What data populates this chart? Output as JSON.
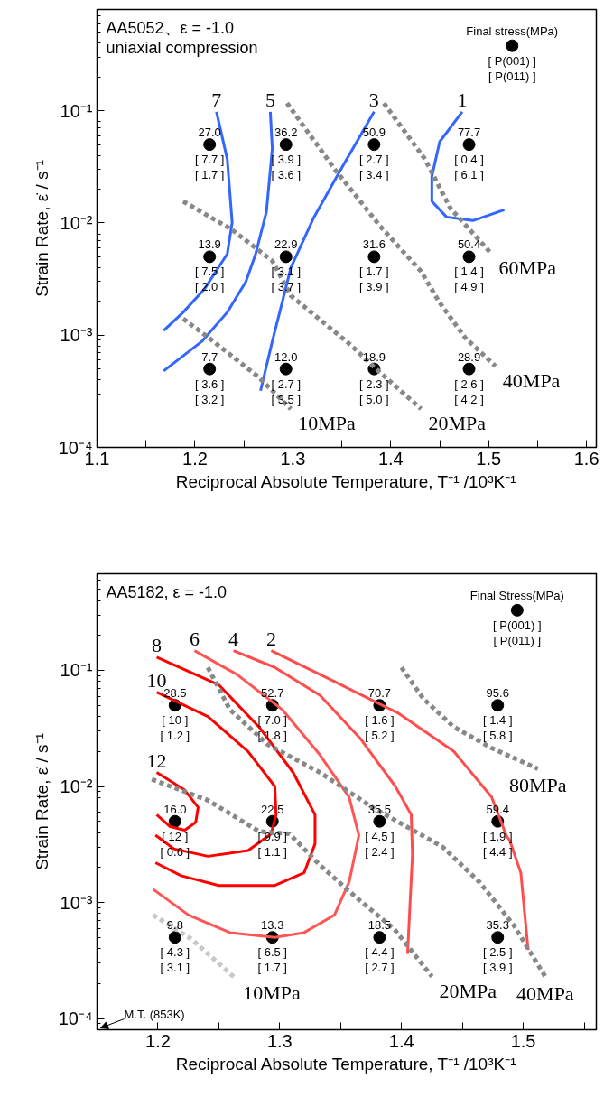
{
  "chart_data": [
    {
      "type": "scatter",
      "title": "AA5052、ε = -1.0",
      "subtitle": "uniaxial compression",
      "xlabel": "Reciprocal Absolute Temperature, T⁻¹ /10³K⁻¹",
      "ylabel": "Strain Rate, ε̇ / s⁻¹",
      "log": "y",
      "xlim": [
        1.1,
        1.61
      ],
      "ylim": [
        0.0001,
        0.8
      ],
      "xticks": [
        1.1,
        {
          "value": 1.15,
          "label": null
        },
        1.2,
        {
          "value": 1.25,
          "label": null
        },
        1.3,
        {
          "value": 1.35,
          "label": null
        },
        1.4,
        {
          "value": 1.45,
          "label": null
        },
        1.5,
        {
          "value": 1.55,
          "label": null
        },
        1.6
      ],
      "yticks": [
        {
          "value": 0.0001,
          "label": "10⁻⁴"
        },
        {
          "value": 0.001,
          "label": "10⁻³"
        },
        {
          "value": 0.01,
          "label": "10⁻²"
        },
        {
          "value": 0.1,
          "label": "10⁻¹"
        }
      ],
      "series": [
        {
          "marker": "circle",
          "color": "#000000",
          "x": [
            1.215,
            1.293,
            1.383,
            1.48,
            1.215,
            1.293,
            1.383,
            1.48,
            1.215,
            1.293,
            1.383,
            1.48
          ],
          "values": [
            0.05,
            0.05,
            0.05,
            0.05,
            0.005,
            0.005,
            0.005,
            0.005,
            0.0005,
            0.0005,
            0.0005,
            0.0005
          ]
        },
        {
          "marker": "circle",
          "color": "#000000",
          "x": [
            1.524
          ],
          "values": [
            0.38
          ]
        },
        {
          "type": "line",
          "name": "7",
          "color": "#3366ff",
          "line_style": "solid",
          "x": [
            1.222,
            1.233,
            1.238,
            1.233,
            1.21,
            1.188,
            1.168
          ],
          "values": [
            0.098,
            0.037,
            0.0101,
            0.0053,
            0.0026,
            0.0016,
            0.0011
          ]
        },
        {
          "type": "line",
          "name": "5",
          "color": "#3366ff",
          "line_style": "solid",
          "x": [
            1.277,
            1.279,
            1.273,
            1.262,
            1.252,
            1.233,
            1.207,
            1.168
          ],
          "values": [
            0.098,
            0.046,
            0.0126,
            0.0053,
            0.003,
            0.0016,
            0.00088,
            0.00048
          ]
        },
        {
          "type": "line",
          "name": "3",
          "color": "#3366ff",
          "line_style": "solid",
          "x": [
            1.383,
            1.347,
            1.321,
            1.298,
            1.29,
            1.279,
            1.267
          ],
          "values": [
            0.098,
            0.028,
            0.011,
            0.004,
            0.0021,
            0.00088,
            0.00032
          ]
        },
        {
          "type": "line",
          "name": "1",
          "color": "#3366ff",
          "line_style": "solid",
          "x": [
            1.473,
            1.45,
            1.442,
            1.442,
            1.457,
            1.484,
            1.516
          ],
          "values": [
            0.098,
            0.053,
            0.026,
            0.0156,
            0.0113,
            0.0105,
            0.0131
          ]
        },
        {
          "type": "line",
          "name": "10MPa",
          "color": "#888888",
          "line_style": "dotted",
          "x": [
            1.188,
            1.214,
            1.264,
            1.298
          ],
          "values": [
            0.0014,
            0.00095,
            0.00043,
            0.00022
          ]
        },
        {
          "type": "line",
          "name": "20MPa",
          "color": "#888888",
          "line_style": "dotted",
          "x": [
            1.188,
            1.237,
            1.279,
            1.298,
            1.359,
            1.385,
            1.431
          ],
          "values": [
            0.0156,
            0.0088,
            0.0046,
            0.00225,
            0.00082,
            0.0005,
            0.00022
          ]
        },
        {
          "type": "line",
          "name": "40MPa",
          "color": "#888888",
          "line_style": "dotted",
          "x": [
            1.294,
            1.343,
            1.389,
            1.431,
            1.45,
            1.476,
            1.507
          ],
          "values": [
            0.117,
            0.03,
            0.0094,
            0.0037,
            0.00195,
            0.00095,
            0.00053
          ]
        },
        {
          "type": "line",
          "name": "60MPa",
          "color": "#888888",
          "line_style": "dotted",
          "x": [
            1.393,
            1.435,
            1.461,
            1.503
          ],
          "values": [
            0.117,
            0.037,
            0.0135,
            0.0053
          ]
        }
      ],
      "annotations": [
        {
          "text": "27.0\n[ 7.7 ]\n[ 1.7 ]",
          "x": 1.215,
          "y": 0.05
        },
        {
          "text": "36.2\n[ 3.9 ]\n[ 3.6 ]",
          "x": 1.293,
          "y": 0.05
        },
        {
          "text": "50.9\n[ 2.7 ]\n[ 3.4 ]",
          "x": 1.383,
          "y": 0.05
        },
        {
          "text": "77.7\n[ 0.4 ]\n[ 6.1 ]",
          "x": 1.48,
          "y": 0.05
        },
        {
          "text": "13.9\n[ 7.5 ]\n[ 2.0 ]",
          "x": 1.215,
          "y": 0.005
        },
        {
          "text": "22.9\n[ 3.1 ]\n[ 3.7 ]",
          "x": 1.293,
          "y": 0.005
        },
        {
          "text": "31.6\n[ 1.7 ]\n[ 3.9 ]",
          "x": 1.383,
          "y": 0.005
        },
        {
          "text": "50.4\n[ 1.4 ]\n[ 4.9 ]",
          "x": 1.48,
          "y": 0.005
        },
        {
          "text": "7.7\n[ 3.6 ]\n[ 3.2 ]",
          "x": 1.215,
          "y": 0.0005
        },
        {
          "text": "12.0\n[ 2.7 ]\n[ 3.5 ]",
          "x": 1.293,
          "y": 0.0005
        },
        {
          "text": "18.9\n[ 2.3 ]\n[ 5.0 ]",
          "x": 1.383,
          "y": 0.0005
        },
        {
          "text": "28.9\n[ 2.6 ]\n[ 4.2 ]",
          "x": 1.48,
          "y": 0.0005
        },
        {
          "text": "Final stress(MPa)",
          "x": 1.524,
          "y": 0.38
        },
        {
          "text": "[ P(001) ]\n[ P(011) ]",
          "x": 1.524,
          "y": 0.38
        }
      ]
    },
    {
      "type": "scatter",
      "title": "AA5182, ε = -1.0",
      "xlabel": "Reciprocal Absolute Temperature, T⁻¹ /10³K⁻¹",
      "ylabel": "Strain Rate, ε̇ / s⁻¹",
      "log": "y",
      "xlim": [
        1.15,
        1.56
      ],
      "ylim": [
        8e-05,
        0.68
      ],
      "xticks": [
        1.2,
        {
          "value": 1.25,
          "label": null
        },
        1.3,
        {
          "value": 1.35,
          "label": null
        },
        1.4,
        {
          "value": 1.45,
          "label": null
        },
        1.5,
        {
          "value": 1.55,
          "label": null
        }
      ],
      "yticks": [
        {
          "value": 0.0001,
          "label": "10⁻⁴"
        },
        {
          "value": 0.001,
          "label": "10⁻³"
        },
        {
          "value": 0.01,
          "label": "10⁻²"
        },
        {
          "value": 0.1,
          "label": "10⁻¹"
        }
      ],
      "series": [
        {
          "marker": "circle",
          "color": "#000000",
          "x": [
            1.214,
            1.294,
            1.382,
            1.479,
            1.214,
            1.294,
            1.382,
            1.479,
            1.214,
            1.294,
            1.382,
            1.479
          ],
          "values": [
            0.05,
            0.05,
            0.05,
            0.05,
            0.005,
            0.005,
            0.005,
            0.005,
            0.0005,
            0.0005,
            0.0005,
            0.0005
          ]
        },
        {
          "marker": "circle",
          "color": "#000000",
          "x": [
            1.495
          ],
          "values": [
            0.33
          ]
        },
        {
          "type": "line",
          "name": "8",
          "color": "#ff0000",
          "line_style": "solid",
          "x": [
            1.199,
            1.25,
            1.283,
            1.311,
            1.329,
            1.329,
            1.32,
            1.296,
            1.25,
            1.219,
            1.198
          ],
          "values": [
            0.13,
            0.075,
            0.0325,
            0.0132,
            0.0057,
            0.0032,
            0.0018,
            0.0014,
            0.0014,
            0.0017,
            0.0022
          ]
        },
        {
          "type": "line",
          "name": "10",
          "color": "#ff0000",
          "line_style": "solid",
          "x": [
            1.199,
            1.241,
            1.274,
            1.296,
            1.297,
            1.293,
            1.274,
            1.241,
            1.213,
            1.198
          ],
          "values": [
            0.065,
            0.04,
            0.02,
            0.01,
            0.0057,
            0.0039,
            0.0028,
            0.0025,
            0.0029,
            0.0038
          ]
        },
        {
          "type": "line",
          "name": "12",
          "color": "#ff0000",
          "line_style": "solid",
          "x": [
            1.199,
            1.222,
            1.233,
            1.231,
            1.222,
            1.21,
            1.199
          ],
          "values": [
            0.0132,
            0.0093,
            0.0066,
            0.0049,
            0.0042,
            0.0045,
            0.0057
          ]
        },
        {
          "type": "line",
          "name": "6",
          "color": "#ff5555",
          "line_style": "solid",
          "x": [
            1.23,
            1.265,
            1.302,
            1.333,
            1.357,
            1.365,
            1.363,
            1.357,
            1.345,
            1.32,
            1.296,
            1.259,
            1.225,
            1.196
          ],
          "values": [
            0.148,
            0.092,
            0.046,
            0.0187,
            0.0081,
            0.0038,
            0.003,
            0.0015,
            0.00078,
            0.00055,
            0.0005,
            0.00055,
            0.00078,
            0.0013
          ]
        },
        {
          "type": "line",
          "name": "4",
          "color": "#ff4d4d",
          "line_style": "solid",
          "x": [
            1.262,
            1.296,
            1.333,
            1.366,
            1.395,
            1.408,
            1.409,
            1.405
          ],
          "values": [
            0.148,
            0.106,
            0.061,
            0.026,
            0.01,
            0.0057,
            0.0026,
            0.00036
          ]
        },
        {
          "type": "line",
          "name": "2",
          "color": "#ff4d4d",
          "line_style": "solid",
          "x": [
            1.293,
            1.345,
            1.397,
            1.443,
            1.474,
            1.486,
            1.489,
            1.498,
            1.504
          ],
          "values": [
            0.148,
            0.08,
            0.043,
            0.02,
            0.0081,
            0.0038,
            0.0034,
            0.0018,
            0.00039
          ]
        },
        {
          "type": "line",
          "name": "10MPa",
          "color": "#c8c8c8",
          "line_style": "dotted",
          "x": [
            1.196,
            1.228,
            1.264
          ],
          "values": [
            0.00078,
            0.00048,
            0.00022
          ]
        },
        {
          "type": "line",
          "name": "20MPa",
          "color": "#888888",
          "line_style": "dotted",
          "x": [
            1.195,
            1.241,
            1.283,
            1.308,
            1.333,
            1.363,
            1.394,
            1.425
          ],
          "values": [
            0.0115,
            0.0076,
            0.0041,
            0.0039,
            0.0021,
            0.0011,
            0.00059,
            0.00023
          ]
        },
        {
          "type": "line",
          "name": "40MPa",
          "color": "#888888",
          "line_style": "dotted",
          "x": [
            1.241,
            1.259,
            1.29,
            1.333,
            1.376,
            1.406,
            1.434,
            1.464,
            1.492,
            1.518
          ],
          "values": [
            0.106,
            0.046,
            0.023,
            0.0132,
            0.0066,
            0.0044,
            0.003,
            0.0015,
            0.00064,
            0.00023
          ]
        },
        {
          "type": "line",
          "name": "80MPa",
          "color": "#888888",
          "line_style": "dotted",
          "x": [
            1.4,
            1.418,
            1.443,
            1.474,
            1.512
          ],
          "values": [
            0.106,
            0.057,
            0.0325,
            0.0214,
            0.0142
          ]
        }
      ],
      "annotations": [
        {
          "text": "28.5\n[ 10 ]\n[ 1.2 ]",
          "x": 1.214,
          "y": 0.05
        },
        {
          "text": "52.7\n[ 7.0 ]\n[ 1.8 ]",
          "x": 1.294,
          "y": 0.05
        },
        {
          "text": "70.7\n[ 1.6 ]\n[ 5.2 ]",
          "x": 1.382,
          "y": 0.05
        },
        {
          "text": "95.6\n[ 1.4 ]\n[ 5.8 ]",
          "x": 1.479,
          "y": 0.05
        },
        {
          "text": "16.0\n[ 12 ]\n[ 0.6 ]",
          "x": 1.214,
          "y": 0.005
        },
        {
          "text": "22.5\n[ 9.9 ]\n[ 1.1 ]",
          "x": 1.294,
          "y": 0.005
        },
        {
          "text": "35.5\n[ 4.5 ]\n[ 2.4 ]",
          "x": 1.382,
          "y": 0.005
        },
        {
          "text": "59.4\n[ 1.9 ]\n[ 4.4 ]",
          "x": 1.479,
          "y": 0.005
        },
        {
          "text": "9.8\n[ 4.3 ]\n[ 3.1 ]",
          "x": 1.214,
          "y": 0.0005
        },
        {
          "text": "13.3\n[ 6.5 ]\n[ 1.7 ]",
          "x": 1.294,
          "y": 0.0005
        },
        {
          "text": "18.5\n[ 4.4 ]\n[ 2.7 ]",
          "x": 1.382,
          "y": 0.0005
        },
        {
          "text": "35.3\n[ 2.5 ]\n[ 3.9 ]",
          "x": 1.479,
          "y": 0.0005
        },
        {
          "text": "Final Stress(MPa)",
          "x": 1.495,
          "y": 0.33
        },
        {
          "text": "[ P(001) ]\n[ P(011) ]",
          "x": 1.495,
          "y": 0.33
        },
        "M.T. (853K)"
      ]
    }
  ]
}
